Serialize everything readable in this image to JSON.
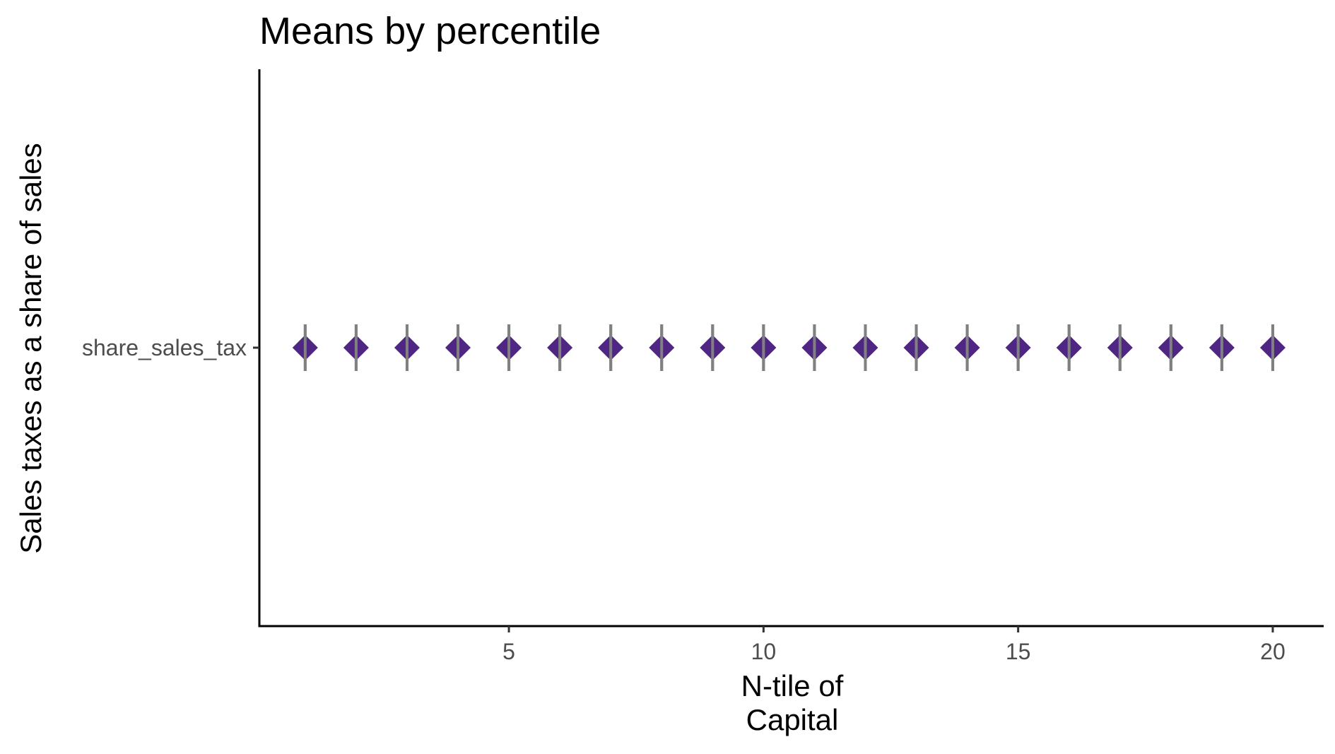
{
  "chart_data": {
    "type": "scatter",
    "title": "Means by percentile",
    "xlabel_lines": [
      "N-tile of",
      "Capital"
    ],
    "ylabel": "Sales taxes as a share of sales",
    "y_categories": [
      "share_sales_tax"
    ],
    "x_ticks": [
      5,
      10,
      15,
      20
    ],
    "xlim": [
      0.1,
      21
    ],
    "grid": false,
    "legend": "none",
    "marker": "diamond",
    "marker_color": "#4f2683",
    "errorbar_color": "#808080",
    "series": [
      {
        "category": "share_sales_tax",
        "x": [
          1,
          2,
          3,
          4,
          5,
          6,
          7,
          8,
          9,
          10,
          11,
          12,
          13,
          14,
          15,
          16,
          17,
          18,
          19,
          20
        ]
      }
    ]
  }
}
